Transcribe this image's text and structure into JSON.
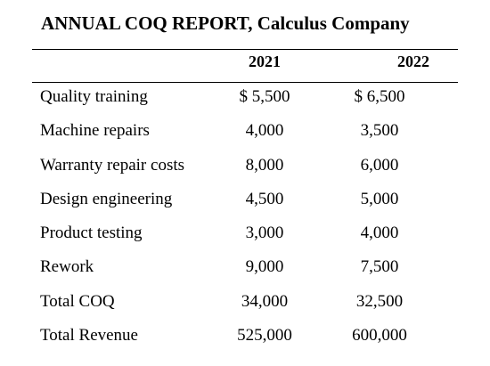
{
  "report": {
    "title": "ANNUAL COQ REPORT, Calculus Company",
    "columns": [
      "2021",
      "2022"
    ],
    "rows": [
      {
        "label": "Quality training",
        "v2021": "$ 5,500",
        "v2022": "$ 6,500"
      },
      {
        "label": "Machine repairs",
        "v2021": "4,000",
        "v2022": "3,500"
      },
      {
        "label": "Warranty repair costs",
        "v2021": "8,000",
        "v2022": "6,000"
      },
      {
        "label": "Design engineering",
        "v2021": "4,500",
        "v2022": "5,000"
      },
      {
        "label": "Product testing",
        "v2021": "3,000",
        "v2022": "4,000"
      },
      {
        "label": "Rework",
        "v2021": "9,000",
        "v2022": "7,500"
      },
      {
        "label": "Total COQ",
        "v2021": "34,000",
        "v2022": "32,500"
      },
      {
        "label": "Total Revenue",
        "v2021": "525,000",
        "v2022": "600,000"
      }
    ]
  }
}
